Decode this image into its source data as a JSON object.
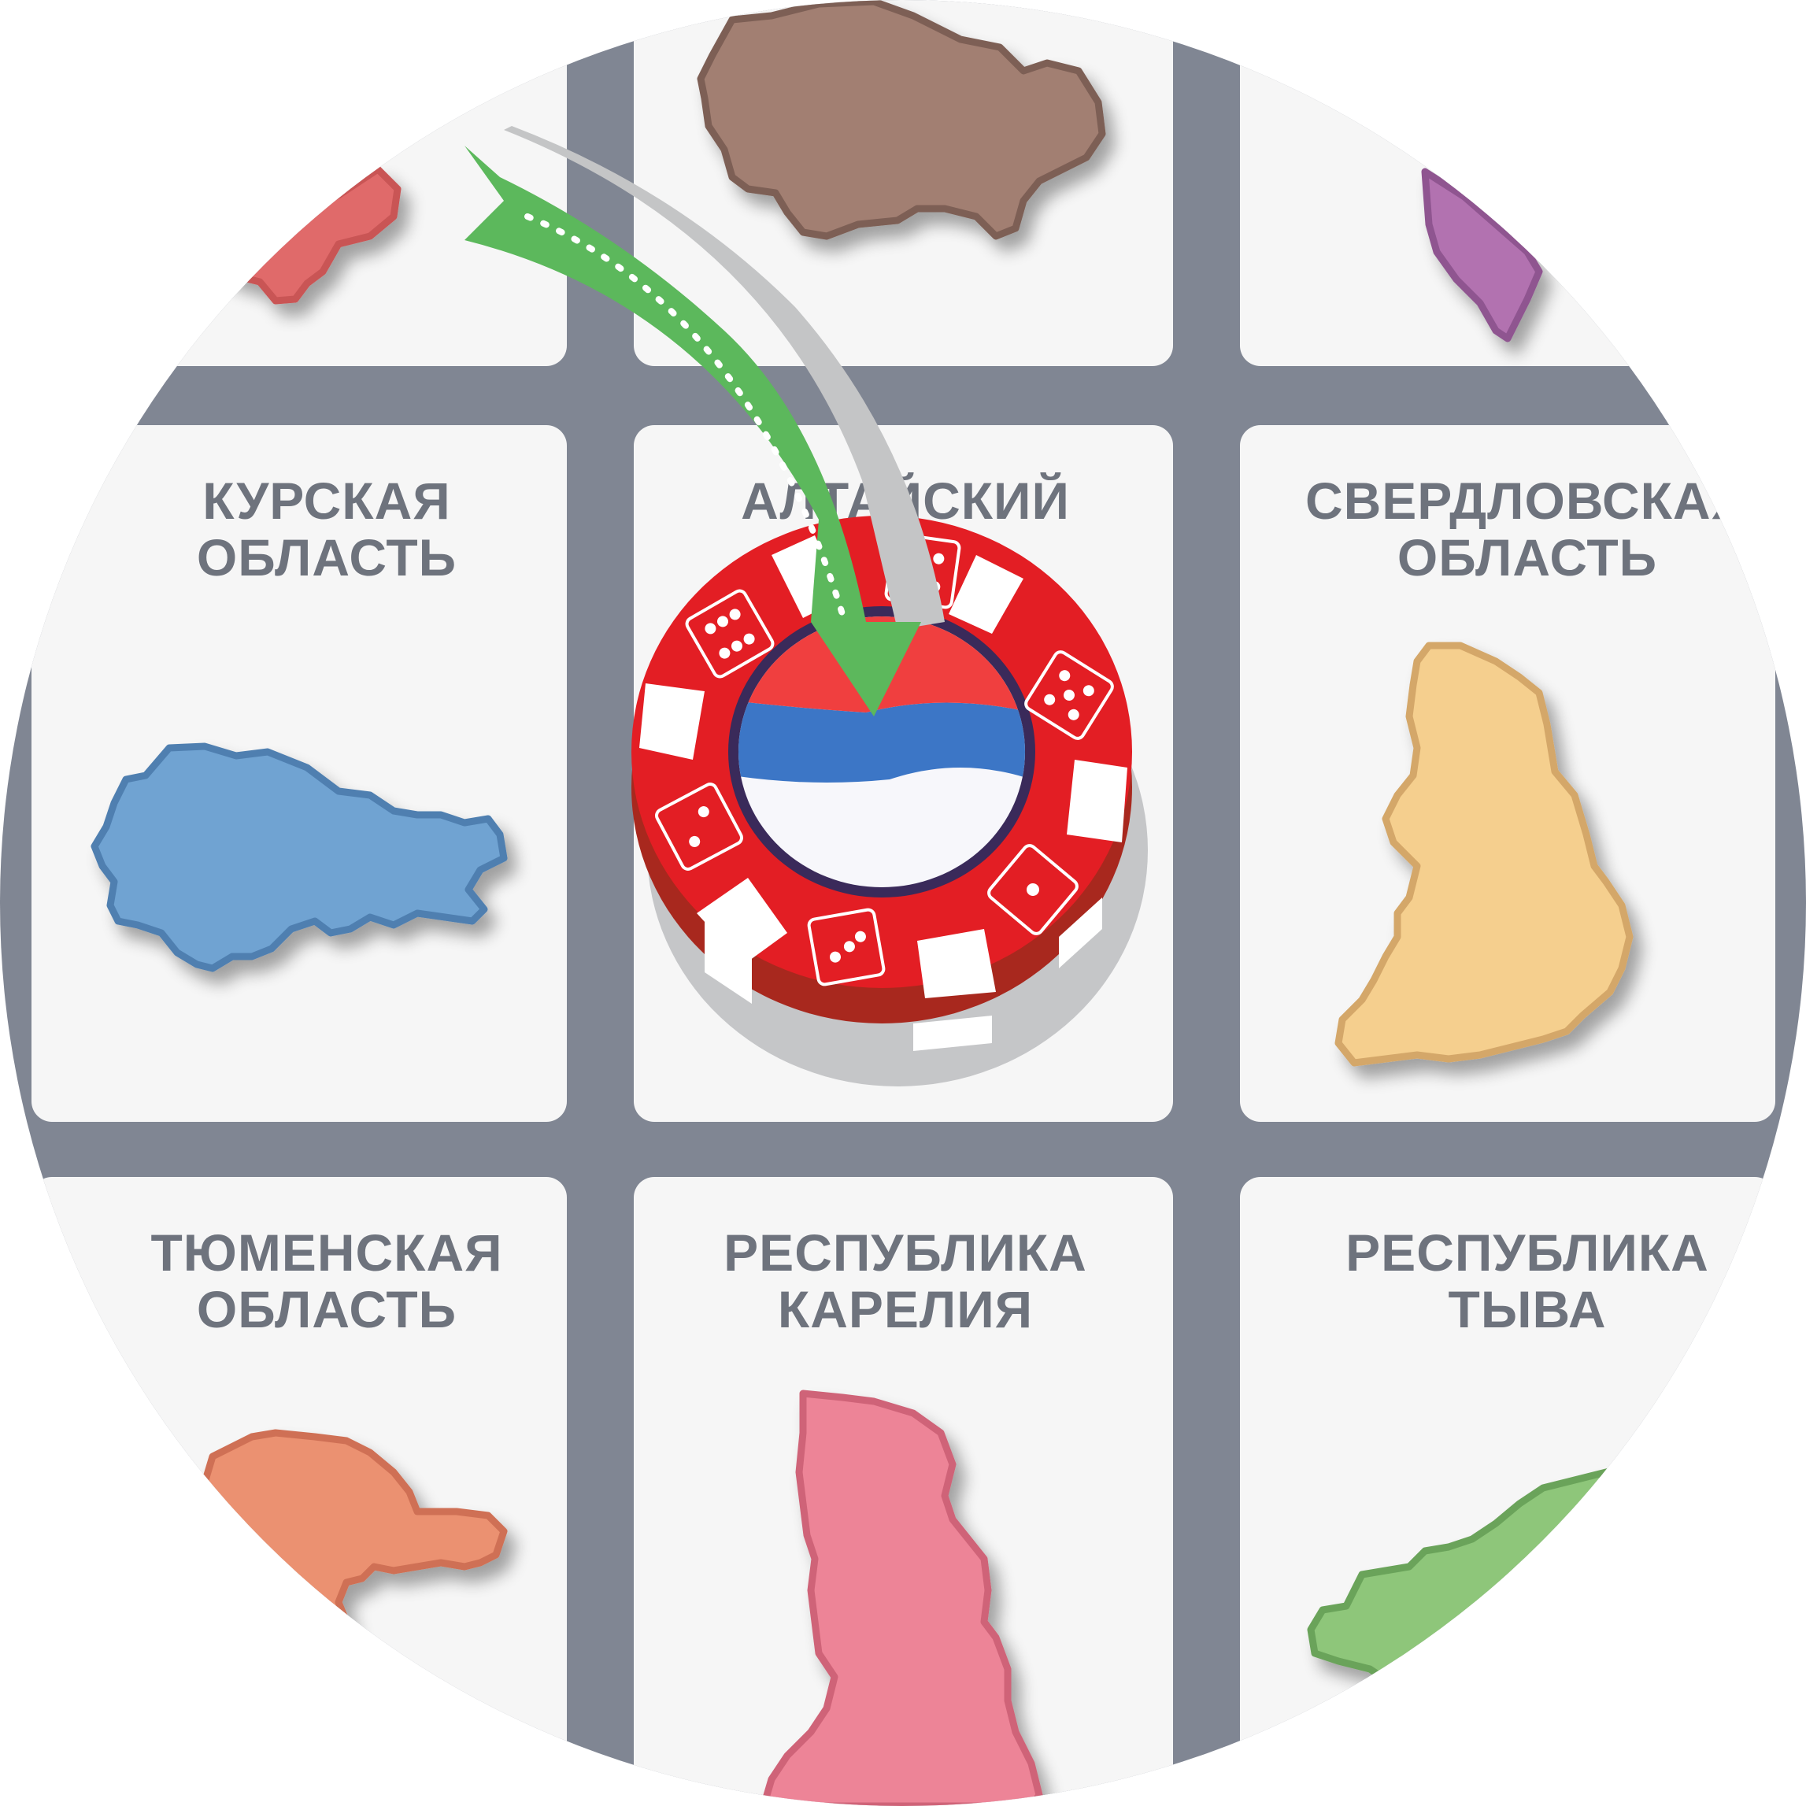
{
  "board": {
    "background_color": "#808693",
    "cell_color": "#f6f6f6",
    "cells": [
      {
        "id": "top-left",
        "line1": "",
        "line2": "",
        "region_color": "#e06b6b",
        "region_stroke": "#c95555"
      },
      {
        "id": "top-center",
        "line1": "",
        "line2": "",
        "region_color": "#a27f72",
        "region_stroke": "#7d5f55"
      },
      {
        "id": "top-right",
        "line1": "",
        "line2": "",
        "region_color": "#b272b0",
        "region_stroke": "#8f5590"
      },
      {
        "id": "kursk",
        "line1": "КУРСКАЯ",
        "line2": "ОБЛАСТЬ",
        "region_color": "#6fa3d2",
        "region_stroke": "#4f7fb0"
      },
      {
        "id": "altai",
        "line1": "АЛТАЙСКИЙ",
        "line2": "",
        "region_color": "",
        "region_stroke": ""
      },
      {
        "id": "sverdlovsk",
        "line1": "СВЕРДЛОВСКАЯ",
        "line2": "ОБЛАСТЬ",
        "region_color": "#f5cf8e",
        "region_stroke": "#d4a769"
      },
      {
        "id": "tyumen",
        "line1": "ТЮМЕНСКАЯ",
        "line2": "ОБЛАСТЬ",
        "region_color": "#eb9171",
        "region_stroke": "#cf7054"
      },
      {
        "id": "karelia",
        "line1": "РЕСПУБЛИКА",
        "line2": "КАРЕЛИЯ",
        "region_color": "#ed8497",
        "region_stroke": "#cf6478"
      },
      {
        "id": "tyva",
        "line1": "РЕСПУБЛИКА",
        "line2": "ТЫВА",
        "region_color": "#8ec67a",
        "region_stroke": "#6aa35a"
      }
    ]
  },
  "token": {
    "chip_color": "#e31e24",
    "flag_colors": [
      "#f7f7fb",
      "#3c76c6",
      "#f03f3f"
    ],
    "dice_faces": [
      4,
      6,
      5,
      1,
      2,
      1,
      2
    ],
    "arrow_color": "#5cb85c"
  }
}
